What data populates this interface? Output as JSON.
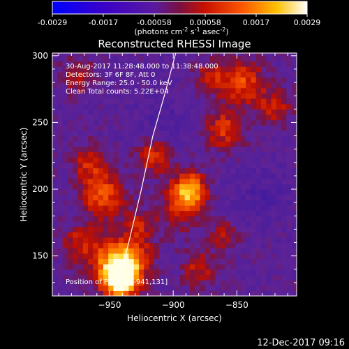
{
  "colorbar": {
    "ticks": [
      "-0.0029",
      "-0.0017",
      "-0.00058",
      "0.00058",
      "0.0017",
      "0.0029"
    ],
    "unit_prefix": "(photons cm",
    "unit_exp1": "-2",
    "unit_mid": " s",
    "unit_exp2": "-1",
    "unit_mid2": " asec",
    "unit_exp3": "-2",
    "unit_suffix": ")",
    "vmin": -0.0029,
    "vmax": 0.0029
  },
  "chart_data": {
    "type": "heatmap",
    "title": "Reconstructed RHESSI Image",
    "xlabel": "Heliocentric X (arcsec)",
    "ylabel": "Heliocentric Y (arcsec)",
    "xlim": [
      -995,
      -803
    ],
    "ylim": [
      120,
      302
    ],
    "xticks": [
      -950,
      -900,
      -850
    ],
    "yticks": [
      150,
      200,
      250,
      300
    ],
    "annotations": [
      "30-Aug-2017 11:28:48.000 to 11:38:48.000",
      "Detectors: 3F 6F 8F, Att 0",
      "Energy Range: 25.0 - 50.0 keV",
      "Clean     Total counts: 5.22E+04"
    ],
    "peak_label": "Position of Peak = [-941,131]",
    "peak": [
      -941,
      131
    ],
    "limb_line": [
      [
        -943,
        130
      ],
      [
        -935,
        160
      ],
      [
        -925,
        200
      ],
      [
        -916,
        240
      ],
      [
        -907,
        270
      ],
      [
        -898,
        302
      ]
    ],
    "blobs": [
      {
        "x": -941,
        "y": 133,
        "amp": 1.0,
        "r": 10
      },
      {
        "x": -948,
        "y": 145,
        "amp": 0.55,
        "r": 14
      },
      {
        "x": -932,
        "y": 150,
        "amp": 0.4,
        "r": 12
      },
      {
        "x": -887,
        "y": 200,
        "amp": 0.8,
        "r": 9
      },
      {
        "x": -895,
        "y": 185,
        "amp": 0.35,
        "r": 12
      },
      {
        "x": -955,
        "y": 195,
        "amp": 0.55,
        "r": 12
      },
      {
        "x": -965,
        "y": 220,
        "amp": 0.4,
        "r": 10
      },
      {
        "x": -915,
        "y": 225,
        "amp": 0.45,
        "r": 10
      },
      {
        "x": -860,
        "y": 245,
        "amp": 0.45,
        "r": 11
      },
      {
        "x": -845,
        "y": 280,
        "amp": 0.5,
        "r": 12
      },
      {
        "x": -820,
        "y": 262,
        "amp": 0.35,
        "r": 10
      },
      {
        "x": -975,
        "y": 160,
        "amp": 0.35,
        "r": 10
      },
      {
        "x": -975,
        "y": 285,
        "amp": 0.3,
        "r": 10
      },
      {
        "x": -880,
        "y": 140,
        "amp": 0.35,
        "r": 10
      },
      {
        "x": -860,
        "y": 165,
        "amp": 0.3,
        "r": 9
      },
      {
        "x": -870,
        "y": 285,
        "amp": 0.35,
        "r": 9
      },
      {
        "x": -925,
        "y": 175,
        "amp": 0.3,
        "r": 8
      },
      {
        "x": -830,
        "y": 195,
        "amp": -0.15,
        "r": 14
      },
      {
        "x": -910,
        "y": 250,
        "amp": -0.15,
        "r": 14
      }
    ]
  },
  "footer_timestamp": "12-Dec-2017 09:16"
}
